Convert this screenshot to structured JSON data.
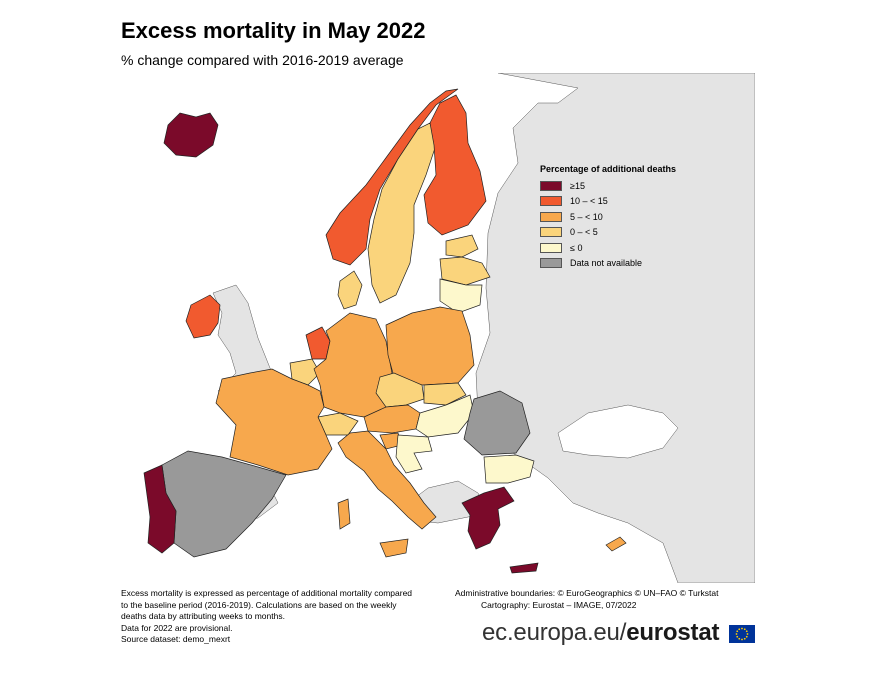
{
  "title": "Excess mortality in May 2022",
  "subtitle": "% change compared with 2016-2019 average",
  "legend": {
    "title": "Percentage of additional deaths",
    "items": [
      {
        "label": "≥15",
        "color": "#7b0a2a"
      },
      {
        "label": "10 – < 15",
        "color": "#f15a2f"
      },
      {
        "label": "5 – < 10",
        "color": "#f7a84d"
      },
      {
        "label": "0 – < 5",
        "color": "#fad47c"
      },
      {
        "label": "≤ 0",
        "color": "#fdf8cc"
      },
      {
        "label": "Data not available",
        "color": "#999999"
      }
    ]
  },
  "colors": {
    "sea": "#ffffff",
    "non_eu_land": "#e4e4e4"
  },
  "regions": [
    {
      "name": "Iceland",
      "class": "≥15"
    },
    {
      "name": "Portugal",
      "class": "≥15"
    },
    {
      "name": "Greece",
      "class": "≥15"
    },
    {
      "name": "Norway",
      "class": "10 – < 15"
    },
    {
      "name": "Finland",
      "class": "10 – < 15"
    },
    {
      "name": "Ireland",
      "class": "10 – < 15"
    },
    {
      "name": "Netherlands",
      "class": "10 – < 15"
    },
    {
      "name": "France",
      "class": "5 – < 10"
    },
    {
      "name": "Germany",
      "class": "5 – < 10"
    },
    {
      "name": "Poland",
      "class": "5 – < 10"
    },
    {
      "name": "Italy",
      "class": "5 – < 10"
    },
    {
      "name": "Austria",
      "class": "5 – < 10"
    },
    {
      "name": "Czechia",
      "class": "0 – < 5"
    },
    {
      "name": "Sweden",
      "class": "0 – < 5"
    },
    {
      "name": "Denmark",
      "class": "0 – < 5"
    },
    {
      "name": "Belgium",
      "class": "0 – < 5"
    },
    {
      "name": "Switzerland",
      "class": "0 – < 5"
    },
    {
      "name": "Slovakia",
      "class": "0 – < 5"
    },
    {
      "name": "Estonia",
      "class": "0 – < 5"
    },
    {
      "name": "Latvia",
      "class": "0 – < 5"
    },
    {
      "name": "Lithuania",
      "class": "≤ 0"
    },
    {
      "name": "Hungary",
      "class": "≤ 0"
    },
    {
      "name": "Bulgaria",
      "class": "≤ 0"
    },
    {
      "name": "Spain",
      "class": "Data not available"
    },
    {
      "name": "Romania",
      "class": "Data not available"
    }
  ],
  "footnotes": {
    "left": [
      "Excess mortality is expressed as percentage of additional mortality compared",
      "to the baseline period (2016-2019). Calculations are based on the weekly",
      "deaths data by attributing weeks to months.",
      "Data for 2022 are provisional.",
      "Source dataset: demo_mexrt"
    ],
    "right": [
      "Administrative boundaries: © EuroGeographics © UN–FAO © Turkstat",
      "Cartography: Eurostat – IMAGE, 07/2022"
    ]
  },
  "brand": {
    "prefix": "ec.europa.eu/",
    "name": "eurostat"
  }
}
